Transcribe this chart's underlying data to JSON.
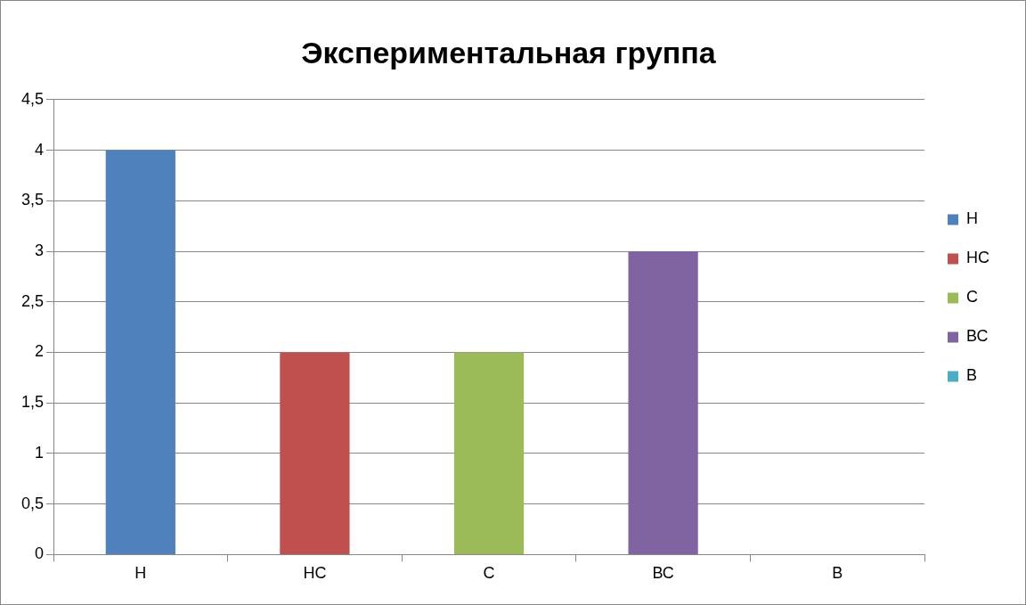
{
  "chart_data": {
    "type": "bar",
    "title": "Экспериментальная группа",
    "categories": [
      "Н",
      "НС",
      "С",
      "ВС",
      "В"
    ],
    "series": [
      {
        "name": "Н",
        "color": "#4f81bd",
        "values": [
          4,
          null,
          null,
          null,
          null
        ]
      },
      {
        "name": "НС",
        "color": "#c0504d",
        "values": [
          null,
          2,
          null,
          null,
          null
        ]
      },
      {
        "name": "С",
        "color": "#9bbb59",
        "values": [
          null,
          null,
          2,
          null,
          null
        ]
      },
      {
        "name": "ВС",
        "color": "#8064a2",
        "values": [
          null,
          null,
          null,
          3,
          null
        ]
      },
      {
        "name": "В",
        "color": "#4bacc6",
        "values": [
          null,
          null,
          null,
          null,
          0
        ]
      }
    ],
    "ylim": [
      0,
      4.5
    ],
    "yticks": [
      0,
      {
        "value": 0.5,
        "label": "0,5"
      },
      1,
      {
        "value": 1.5,
        "label": "1,5"
      },
      2,
      {
        "value": 2.5,
        "label": "2,5"
      },
      3,
      {
        "value": 3.5,
        "label": "3,5"
      },
      4,
      {
        "value": 4.5,
        "label": "4,5"
      }
    ],
    "grid": "y",
    "legend": "right"
  }
}
